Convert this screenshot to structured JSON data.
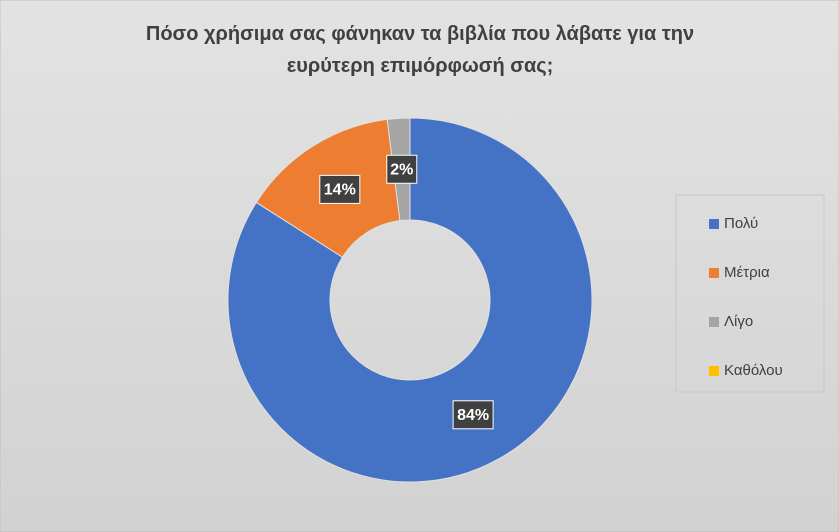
{
  "chart_data": {
    "type": "doughnut",
    "title": "Πόσο χρήσιμα σας φάνηκαν τα βιβλία που λάβατε για την ευρύτερη επιμόρφωσή σας;",
    "categories": [
      "Πολύ",
      "Μέτρια",
      "Λίγο",
      "Καθόλου"
    ],
    "values": [
      84,
      14,
      2,
      0
    ],
    "value_labels": [
      "84%",
      "14%",
      "2%",
      null
    ],
    "colors": [
      "#4472c4",
      "#ed7d31",
      "#a5a5a5",
      "#ffc000"
    ],
    "legend": "right"
  }
}
